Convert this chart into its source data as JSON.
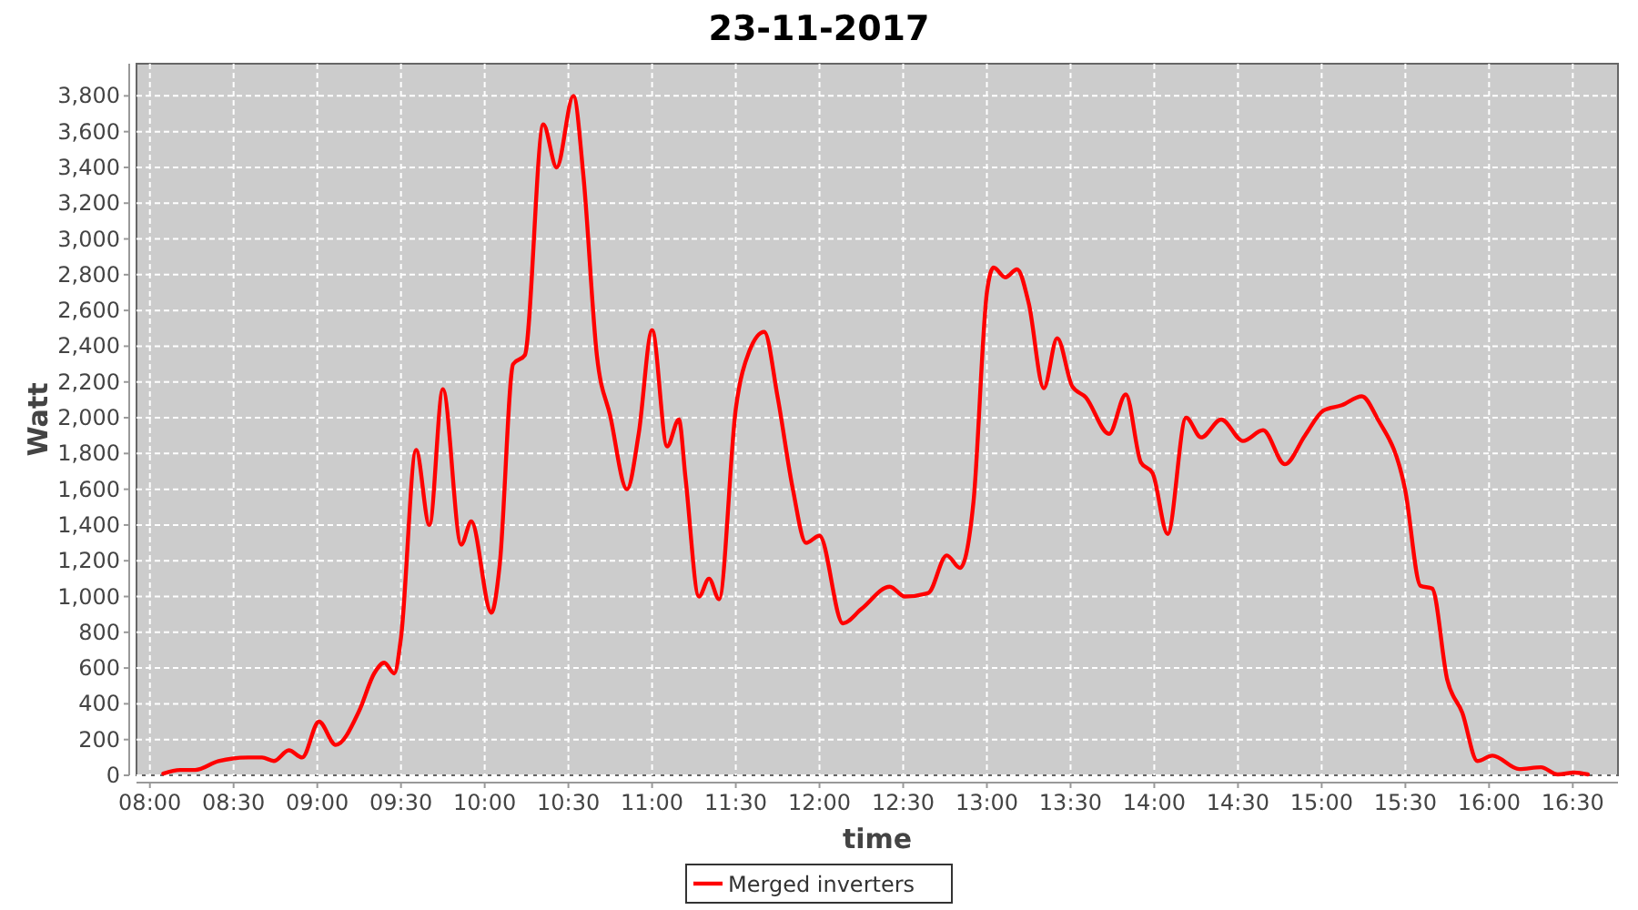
{
  "chart_data": {
    "type": "line",
    "title": "23-11-2017",
    "xlabel": "time",
    "ylabel": "Watt",
    "x": [
      8.08,
      8.18,
      8.27,
      8.41,
      8.59,
      8.67,
      8.74,
      8.83,
      8.91,
      9.01,
      9.11,
      9.25,
      9.34,
      9.4,
      9.46,
      9.5,
      9.59,
      9.67,
      9.75,
      9.86,
      9.92,
      10.04,
      10.09,
      10.17,
      10.24,
      10.35,
      10.43,
      10.53,
      10.59,
      10.67,
      10.75,
      10.85,
      10.92,
      11.0,
      11.09,
      11.16,
      11.2,
      11.28,
      11.34,
      11.4,
      11.5,
      11.58,
      11.67,
      11.75,
      11.84,
      11.92,
      12.0,
      12.14,
      12.25,
      12.42,
      12.51,
      12.65,
      12.76,
      12.84,
      12.92,
      13.0,
      13.04,
      13.11,
      13.18,
      13.25,
      13.34,
      13.42,
      13.51,
      13.59,
      13.73,
      13.83,
      13.92,
      13.99,
      14.08,
      14.19,
      14.28,
      14.4,
      14.53,
      14.65,
      14.78,
      14.9,
      15.01,
      15.12,
      15.24,
      15.33,
      15.5,
      15.59,
      15.66,
      15.75,
      15.84,
      15.93,
      16.02,
      16.18,
      16.31,
      16.41,
      16.51,
      16.59
    ],
    "series": [
      {
        "name": "Merged inverters",
        "color": "#ff0000",
        "values": [
          10,
          30,
          30,
          80,
          100,
          100,
          80,
          140,
          100,
          300,
          170,
          360,
          570,
          630,
          570,
          770,
          1820,
          1400,
          2160,
          1290,
          1420,
          910,
          1180,
          2300,
          2350,
          3640,
          3400,
          3800,
          3350,
          2350,
          2010,
          1600,
          1910,
          2490,
          1840,
          1990,
          1660,
          1000,
          1100,
          985,
          2050,
          2370,
          2480,
          2115,
          1605,
          1300,
          1340,
          850,
          930,
          1055,
          1000,
          1020,
          1230,
          1160,
          1530,
          2700,
          2840,
          2785,
          2830,
          2640,
          2165,
          2445,
          2175,
          2115,
          1910,
          2130,
          1750,
          1690,
          1350,
          2000,
          1890,
          1990,
          1870,
          1930,
          1740,
          1900,
          2040,
          2070,
          2120,
          2000,
          1590,
          1060,
          1045,
          535,
          350,
          80,
          110,
          35,
          45,
          5,
          15,
          5
        ]
      }
    ],
    "xlim": [
      7.92,
      16.77
    ],
    "xticks": [
      {
        "value": 8,
        "label": "08:00"
      },
      {
        "value": 8.5,
        "label": "08:30"
      },
      {
        "value": 9,
        "label": "09:00"
      },
      {
        "value": 9.5,
        "label": "09:30"
      },
      {
        "value": 10,
        "label": "10:00"
      },
      {
        "value": 10.5,
        "label": "10:30"
      },
      {
        "value": 11,
        "label": "11:00"
      },
      {
        "value": 11.5,
        "label": "11:30"
      },
      {
        "value": 12,
        "label": "12:00"
      },
      {
        "value": 12.5,
        "label": "12:30"
      },
      {
        "value": 13,
        "label": "13:00"
      },
      {
        "value": 13.5,
        "label": "13:30"
      },
      {
        "value": 14,
        "label": "14:00"
      },
      {
        "value": 14.5,
        "label": "14:30"
      },
      {
        "value": 15,
        "label": "15:00"
      },
      {
        "value": 15.5,
        "label": "15:30"
      },
      {
        "value": 16,
        "label": "16:00"
      },
      {
        "value": 16.5,
        "label": "16:30"
      }
    ],
    "ylim": [
      0,
      3980
    ],
    "yticks": [
      0,
      200,
      400,
      600,
      800,
      {
        "value": 1000,
        "label": "1,000"
      },
      {
        "value": 1200,
        "label": "1,200"
      },
      {
        "value": 1400,
        "label": "1,400"
      },
      {
        "value": 1600,
        "label": "1,600"
      },
      {
        "value": 1800,
        "label": "1,800"
      },
      {
        "value": 2000,
        "label": "2,000"
      },
      {
        "value": 2200,
        "label": "2,200"
      },
      {
        "value": 2400,
        "label": "2,400"
      },
      {
        "value": 2600,
        "label": "2,600"
      },
      {
        "value": 2800,
        "label": "2,800"
      },
      {
        "value": 3000,
        "label": "3,000"
      },
      {
        "value": 3200,
        "label": "3,200"
      },
      {
        "value": 3400,
        "label": "3,400"
      },
      {
        "value": 3600,
        "label": "3,600"
      },
      {
        "value": 3800,
        "label": "3,800"
      }
    ],
    "grid": true,
    "legend": "bottom",
    "line_style": "solid"
  }
}
